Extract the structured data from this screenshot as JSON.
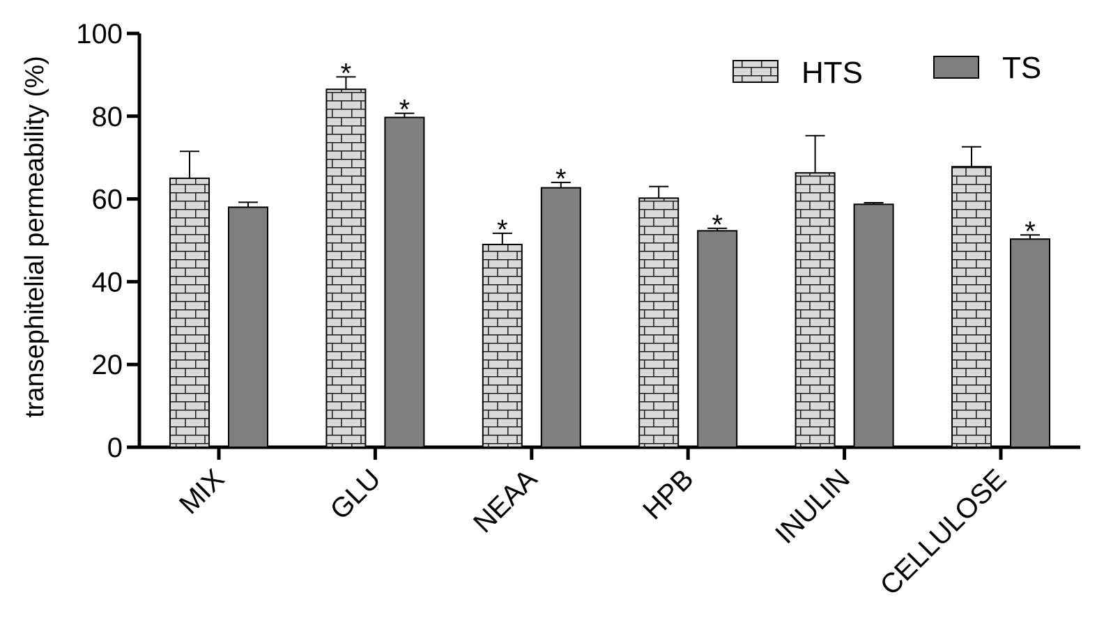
{
  "chart_data": {
    "type": "bar",
    "title": "",
    "xlabel": "",
    "ylabel": "transephitelial permeability (%)",
    "ylim": [
      0,
      100
    ],
    "yticks": [
      0,
      20,
      40,
      60,
      80,
      100
    ],
    "categories": [
      "MIX",
      "GLU",
      "NEAA",
      "HPB",
      "INULIN",
      "CELLULOSE"
    ],
    "legend": {
      "position": "top-right"
    },
    "series": [
      {
        "name": "HTS",
        "pattern": "brick",
        "color": "#d9d9d9",
        "values": [
          65,
          86.5,
          49,
          60.2,
          66.3,
          67.8
        ],
        "errors": [
          6.5,
          3,
          2.7,
          2.8,
          9,
          4.8
        ],
        "significant": [
          false,
          true,
          true,
          false,
          false,
          false
        ]
      },
      {
        "name": "TS",
        "pattern": "solid",
        "color": "#808080",
        "values": [
          58,
          79.7,
          62.7,
          52.3,
          58.7,
          50.3
        ],
        "errors": [
          1.2,
          1,
          1.3,
          0.6,
          0.4,
          1
        ],
        "significant": [
          false,
          true,
          true,
          true,
          false,
          true
        ]
      }
    ],
    "significance_marker": "*"
  }
}
